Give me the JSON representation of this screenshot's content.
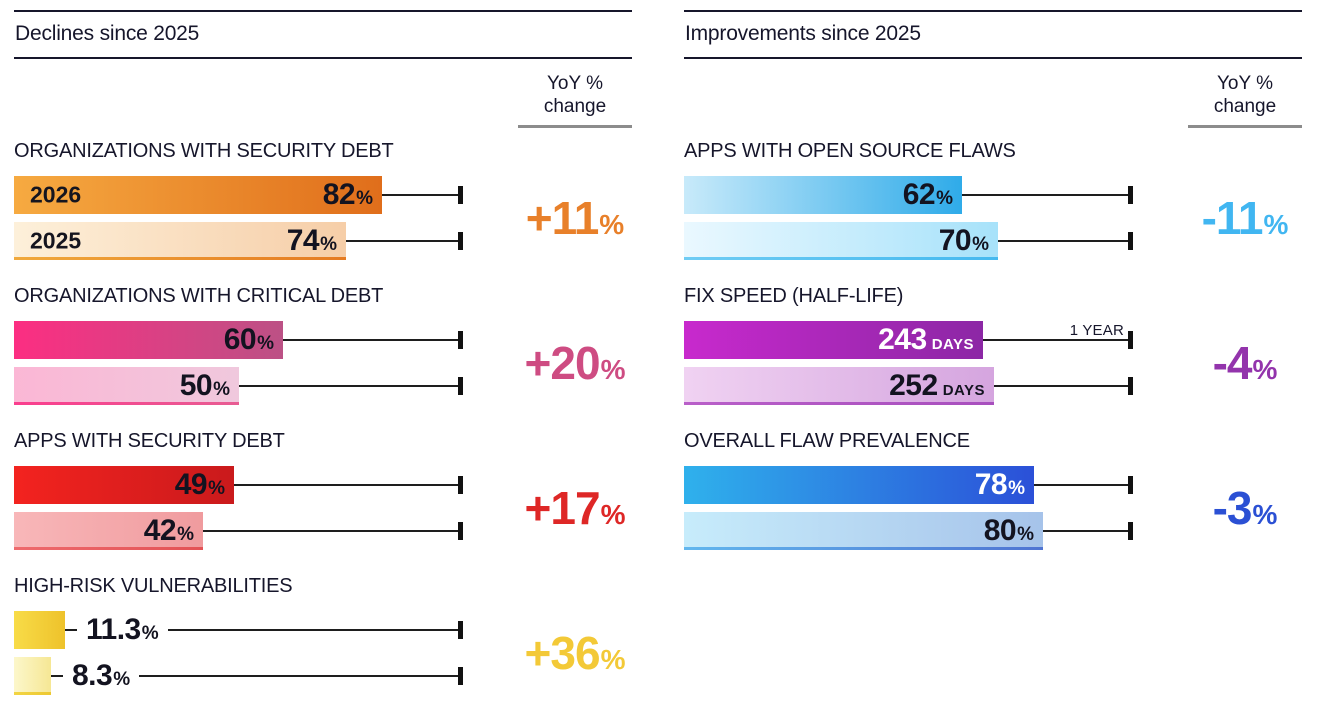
{
  "chart_data": [
    {
      "type": "bar",
      "title": "Declines since 2025",
      "orientation": "horizontal",
      "yoy_column_header": "YoY % change",
      "categories": [
        "ORGANIZATIONS WITH SECURITY DEBT",
        "ORGANIZATIONS WITH CRITICAL DEBT",
        "APPS WITH SECURITY DEBT",
        "HIGH-RISK VULNERABILITIES"
      ],
      "series": [
        {
          "name": "2026",
          "values": [
            82,
            60,
            49,
            11.3
          ]
        },
        {
          "name": "2025",
          "values": [
            74,
            50,
            42,
            8.3
          ]
        }
      ],
      "unit": "%",
      "yoy_change": [
        "+11%",
        "+20%",
        "+17%",
        "+36%"
      ],
      "xlim": [
        0,
        100
      ],
      "reference_tick": "100%"
    },
    {
      "type": "bar",
      "title": "Improvements since 2025",
      "orientation": "horizontal",
      "yoy_column_header": "YoY % change",
      "categories": [
        "APPS WITH OPEN SOURCE FLAWS",
        "FIX SPEED (HALF-LIFE)",
        "OVERALL FLAW PREVALENCE"
      ],
      "series": [
        {
          "name": "2026",
          "values": [
            62,
            243,
            78
          ]
        },
        {
          "name": "2025",
          "values": [
            70,
            252,
            80
          ]
        }
      ],
      "units": [
        "%",
        "DAYS",
        "%"
      ],
      "yoy_change": [
        "-11%",
        "-4%",
        "-3%"
      ],
      "annotations": [
        "1 YEAR"
      ],
      "reference_tick": "100% / 1 YEAR"
    }
  ],
  "panels": [
    {
      "title": "Declines since 2025",
      "yoy_header": "YoY % change",
      "sections": [
        {
          "label": "ORGANIZATIONS WITH SECURITY DEBT",
          "yoy": {
            "value": "+11",
            "unit": "%",
            "color": "#E8802A"
          },
          "bars": [
            {
              "year": "2026",
              "value": "82",
              "unit": "%",
              "width_pct": 82,
              "gradient": [
                "#F6AA41",
                "#E06E1B"
              ],
              "text": "dark",
              "label_inside": true
            },
            {
              "year": "2025",
              "value": "74",
              "unit": "%",
              "width_pct": 74,
              "gradient": [
                "#FDF0DA",
                "#F6CEA8"
              ],
              "strip": [
                "#F0A93C",
                "#E57B22"
              ],
              "text": "dark",
              "label_inside": true
            }
          ]
        },
        {
          "label": "ORGANIZATIONS WITH CRITICAL DEBT",
          "yoy": {
            "value": "+20",
            "unit": "%",
            "color": "#CE4C82"
          },
          "bars": [
            {
              "value": "60",
              "unit": "%",
              "width_pct": 60,
              "gradient": [
                "#FC2E82",
                "#BC5185"
              ],
              "text": "dark",
              "label_inside": true
            },
            {
              "value": "50",
              "unit": "%",
              "width_pct": 50,
              "gradient": [
                "#FBB7D5",
                "#F0C8DD"
              ],
              "strip": [
                "#FA3E8E",
                "#E85C93"
              ],
              "text": "dark",
              "label_inside": true
            }
          ]
        },
        {
          "label": "APPS WITH SECURITY DEBT",
          "yoy": {
            "value": "+17",
            "unit": "%",
            "color": "#DE2726"
          },
          "bars": [
            {
              "value": "49",
              "unit": "%",
              "width_pct": 49,
              "gradient": [
                "#F3231F",
                "#CA1A1C"
              ],
              "text": "dark",
              "label_inside": true
            },
            {
              "value": "42",
              "unit": "%",
              "width_pct": 42,
              "gradient": [
                "#F8B7B9",
                "#F09B9E"
              ],
              "strip": [
                "#EE6A6D",
                "#E35255"
              ],
              "text": "dark",
              "label_inside": true
            }
          ]
        },
        {
          "label": "HIGH-RISK VULNERABILITIES",
          "yoy": {
            "value": "+36",
            "unit": "%",
            "color": "#F3C937"
          },
          "bars": [
            {
              "value": "11.3",
              "unit": "%",
              "width_pct": 11.3,
              "gradient": [
                "#F8DC48",
                "#EEC22B"
              ],
              "text": "dark",
              "label_inside": false
            },
            {
              "value": "8.3",
              "unit": "%",
              "width_pct": 8.3,
              "gradient": [
                "#FCF7CB",
                "#F6E794"
              ],
              "strip": [
                "#F2D544",
                "#EDC832"
              ],
              "text": "dark",
              "label_inside": false
            }
          ]
        }
      ]
    },
    {
      "title": "Improvements since 2025",
      "yoy_header": "YoY % change",
      "sections": [
        {
          "label": "APPS WITH OPEN SOURCE FLAWS",
          "yoy": {
            "value": "-11",
            "unit": "%",
            "color": "#41B6F1"
          },
          "bars": [
            {
              "value": "62",
              "unit": "%",
              "width_pct": 62,
              "gradient": [
                "#C8EAFA",
                "#2FABE9"
              ],
              "text": "dark",
              "label_inside": true
            },
            {
              "value": "70",
              "unit": "%",
              "width_pct": 70,
              "gradient": [
                "#EAF8FF",
                "#A7E2FA"
              ],
              "strip": [
                "#6FCCF4",
                "#45B9EF"
              ],
              "text": "dark",
              "label_inside": true
            }
          ]
        },
        {
          "label": "FIX SPEED (HALF-LIFE)",
          "yoy": {
            "value": "-4",
            "unit": "%",
            "color": "#9334AC"
          },
          "annotation": "1 YEAR",
          "bars": [
            {
              "value": "243",
              "unit": "DAYS",
              "width_pct": 66.6,
              "gradient": [
                "#C829CD",
                "#8C27A5"
              ],
              "text": "light",
              "label_inside": true
            },
            {
              "value": "252",
              "unit": "DAYS",
              "width_pct": 69.0,
              "gradient": [
                "#F0D2F2",
                "#D5A5DF"
              ],
              "strip": [
                "#B95FC9",
                "#A84FBE"
              ],
              "text": "dark",
              "label_inside": true
            }
          ]
        },
        {
          "label": "OVERALL FLAW PREVALENCE",
          "yoy": {
            "value": "-3",
            "unit": "%",
            "color": "#2B50D4"
          },
          "bars": [
            {
              "value": "78",
              "unit": "%",
              "width_pct": 78,
              "gradient": [
                "#2FB1EC",
                "#2B50D8"
              ],
              "text": "light",
              "label_inside": true
            },
            {
              "value": "80",
              "unit": "%",
              "width_pct": 80,
              "gradient": [
                "#C7ECFB",
                "#A6C3EA"
              ],
              "strip": [
                "#62B7EE",
                "#4F74D2"
              ],
              "text": "dark",
              "label_inside": true
            }
          ]
        }
      ]
    }
  ]
}
